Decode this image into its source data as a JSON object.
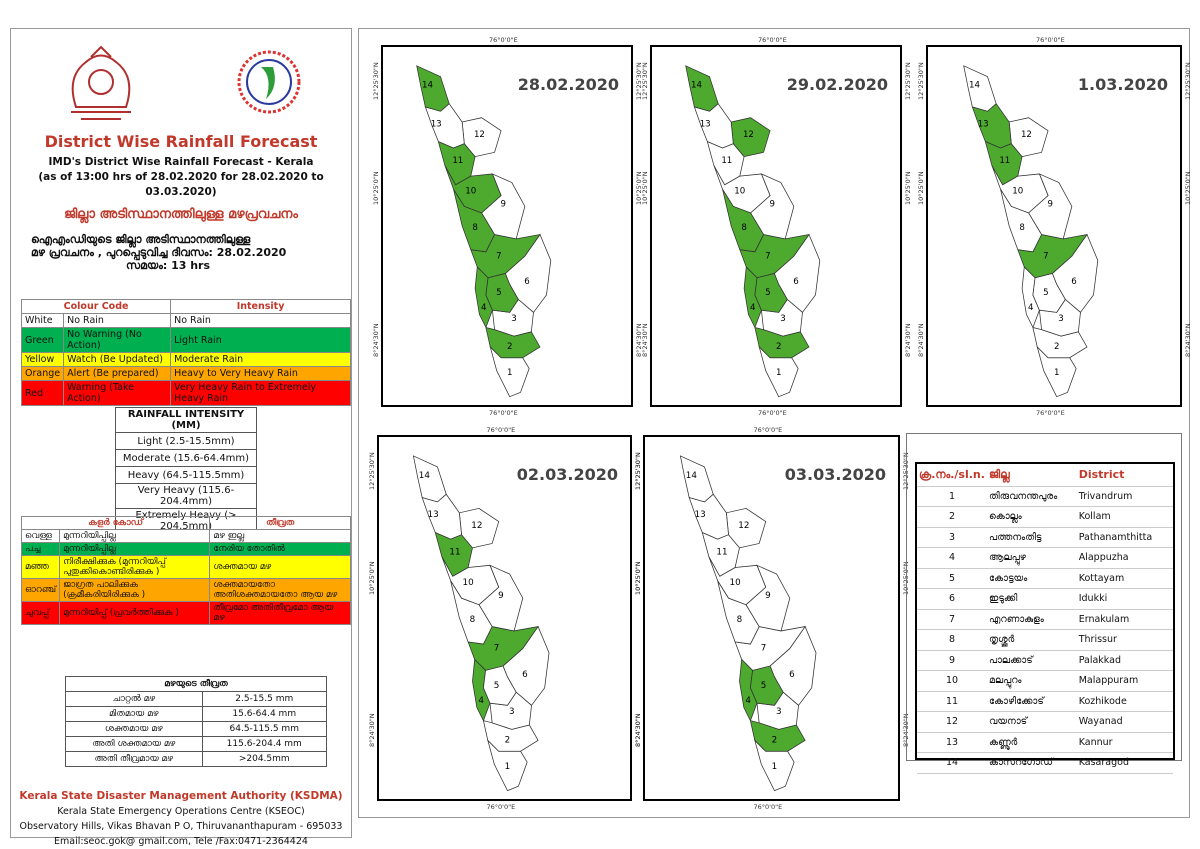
{
  "header": {
    "title": "District Wise Rainfall Forecast",
    "subtitle1": "IMD's District Wise Rainfall Forecast - Kerala",
    "subtitle2": "(as of 13:00 hrs of 28.02.2020  for 28.02.2020  to 03.03.2020)",
    "ml_title": "ജില്ലാ അടിസ്ഥാനത്തിലുള്ള  മഴപ്രവചനം",
    "ml_line1": "ഐഎംഡിയുടെ ജില്ലാ    അടിസ്ഥാനത്തിലുള്ള",
    "ml_line2": "മഴ പ്രവചനം , പുറപ്പെടുവിച്ച     ദിവസം: 28.02.2020",
    "ml_line3": "സമയം: 13 hrs"
  },
  "colour_code": {
    "headers": [
      "Colour Code",
      "Intensity"
    ],
    "rows": [
      {
        "colour": "White",
        "code": "No Rain",
        "intensity": "No Rain",
        "bg": "#ffffff"
      },
      {
        "colour": "Green",
        "code": "No Warning (No Action)",
        "intensity": "Light Rain",
        "bg": "#00b050"
      },
      {
        "colour": "Yellow",
        "code": "Watch (Be Updated)",
        "intensity": "Moderate Rain",
        "bg": "#ffff00"
      },
      {
        "colour": "Orange",
        "code": "Alert (Be prepared)",
        "intensity": "Heavy to Very Heavy Rain",
        "bg": "#ffa500"
      },
      {
        "colour": "Red",
        "code": "Warning (Take Action)",
        "intensity": "Very Heavy Rain to Extremely Heavy Rain",
        "bg": "#ff0000"
      }
    ]
  },
  "rainfall_intensity": {
    "title": "RAINFALL INTENSITY (MM)",
    "rows": [
      "Light (2.5-15.5mm)",
      "Moderate (15.6-64.4mm)",
      "Heavy (64.5-115.5mm)",
      "Very Heavy (115.6-204.4mm)",
      "Extremely Heavy (> 204.5mm)"
    ]
  },
  "ml_colour_code": {
    "headers": [
      "കളർ കോഡ്",
      "തീവ്രത"
    ],
    "rows": [
      {
        "colour": "വെള്ള",
        "code": "മുന്നറിയിപ്പില്ല",
        "intensity": "മഴ ഇല്ല",
        "bg": "#ffffff"
      },
      {
        "colour": "പച്ച",
        "code": "മുന്നറിയിപ്പില്ല",
        "intensity": "നേരിയ തോതിൽ",
        "bg": "#00b050"
      },
      {
        "colour": "മഞ്ഞ",
        "code": "നിരീക്ഷിക്കുക (മുന്നറിയിപ്പ് പുതുക്കികൊണ്ടിരിക്കുക  )",
        "intensity": "ശക്തമായ മഴ",
        "bg": "#ffff00"
      },
      {
        "colour": "ഓറഞ്ച്",
        "code": "ജാഗ്രത പാലിക്കുക (ക്രമീകരിയിരിക്കുക )",
        "intensity": "ശക്തമായതോ അതിശക്തമായതോ ആയ മഴ",
        "bg": "#ffa500"
      },
      {
        "colour": "ചുവപ്പ്",
        "code": "മുന്നറിയിപ്പ് (പ്രവർത്തിക്കുക )",
        "intensity": "തീവ്രമോ അതിതീവ്രമോ ആയ മഴ",
        "bg": "#ff0000"
      }
    ]
  },
  "ml_intensity": {
    "title": "മഴയുടെ തീവ്രത",
    "rows": [
      {
        "name": "ചാറ്റൽ മഴ",
        "range": "2.5-15.5 mm"
      },
      {
        "name": "മിതമായ മഴ",
        "range": "15.6-64.4 mm"
      },
      {
        "name": "ശക്തമായ മഴ",
        "range": "64.5-115.5 mm"
      },
      {
        "name": "അതി ശക്തമായ മഴ",
        "range": "115.6-204.4 mm"
      },
      {
        "name": "അതി തീവ്രമായ മഴ",
        "range": ">204.5mm"
      }
    ]
  },
  "footer": {
    "org": "Kerala State Disaster Management Authority (KSDMA)",
    "line1": "Kerala State Emergency Operations Centre (KSEOC)",
    "line2": "Observatory Hills, Vikas Bhavan P O, Thiruvananthapuram - 695033",
    "line3": "Email:seoc.gok@ gmail.com, Tele /Fax:0471-2364424"
  },
  "axis": {
    "lon": "76°0'0\"E",
    "lat_n": "12°25'30\"N",
    "lat_m": "10°25'0\"N",
    "lat_s": "8°24'30\"N"
  },
  "maps": [
    {
      "date": "28.02.2020",
      "green": [
        14,
        11,
        10,
        8,
        7,
        5,
        4,
        2
      ]
    },
    {
      "date": "29.02.2020",
      "green": [
        14,
        12,
        8,
        7,
        5,
        4,
        2
      ]
    },
    {
      "date": "1.03.2020",
      "green": [
        13,
        11,
        7
      ]
    },
    {
      "date": "02.03.2020",
      "green": [
        11,
        7,
        4
      ]
    },
    {
      "date": "03.03.2020",
      "green": [
        5,
        4,
        2
      ]
    }
  ],
  "districts": {
    "headers": [
      "ക്ര.നം./sl.n.",
      "ജില്ല",
      "District"
    ],
    "rows": [
      {
        "no": "1",
        "ml": "തിരുവനന്തപുരം",
        "en": "Trivandrum"
      },
      {
        "no": "2",
        "ml": "കൊല്ലം",
        "en": "Kollam"
      },
      {
        "no": "3",
        "ml": "പത്തനംതിട്ട",
        "en": "Pathanamthitta"
      },
      {
        "no": "4",
        "ml": "ആലപ്പുഴ",
        "en": "Alappuzha"
      },
      {
        "no": "5",
        "ml": "കോട്ടയം",
        "en": "Kottayam"
      },
      {
        "no": "6",
        "ml": "ഇടുക്കി",
        "en": "Idukki"
      },
      {
        "no": "7",
        "ml": "എറണാകുളം",
        "en": "Ernakulam"
      },
      {
        "no": "8",
        "ml": "തൃശ്ശൂർ",
        "en": "Thrissur"
      },
      {
        "no": "9",
        "ml": "പാലക്കാട്",
        "en": "Palakkad"
      },
      {
        "no": "10",
        "ml": "മലപ്പുറം",
        "en": "Malappuram"
      },
      {
        "no": "11",
        "ml": "കോഴിക്കോട്",
        "en": "Kozhikode"
      },
      {
        "no": "12",
        "ml": "വയനാട്",
        "en": "Wayanad"
      },
      {
        "no": "13",
        "ml": "കണ്ണൂർ",
        "en": "Kannur"
      },
      {
        "no": "14",
        "ml": "കാസറഗോഡ്",
        "en": "Kasaragod"
      }
    ]
  },
  "colors": {
    "green": "#4daa2f",
    "title_red": "#c0392b"
  }
}
